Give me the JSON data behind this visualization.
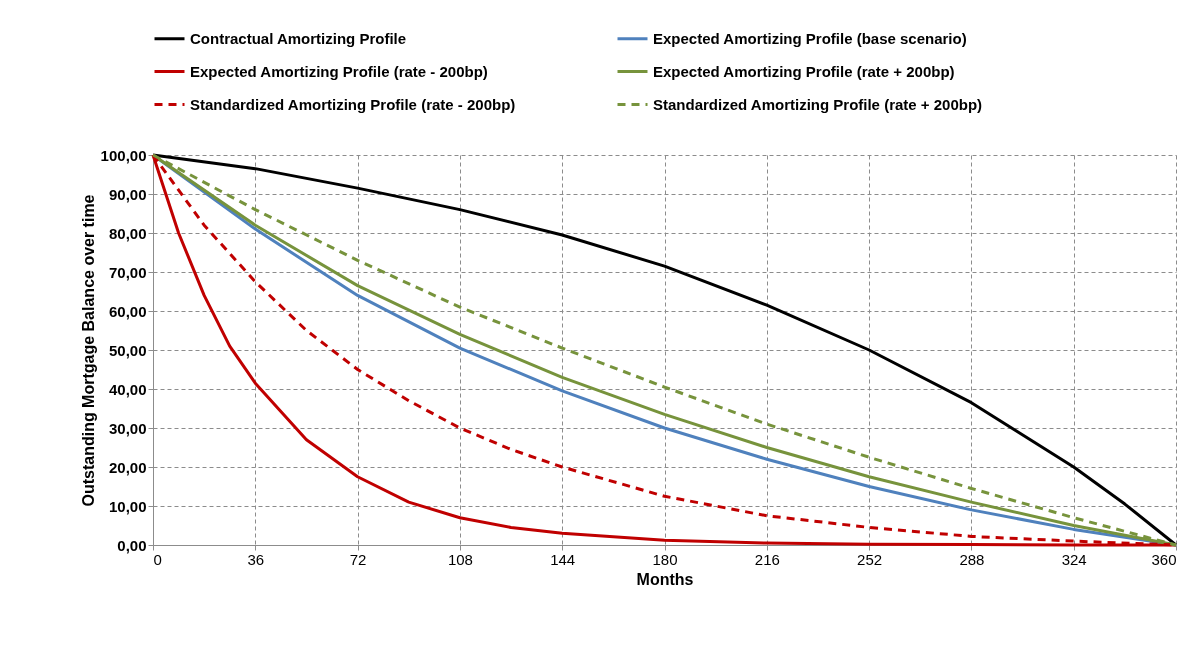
{
  "chart_data": {
    "type": "line",
    "xlabel": "Months",
    "ylabel": "Outstanding Mortgage Balance over time",
    "xlim": [
      0,
      360
    ],
    "xticks": [
      0,
      36,
      72,
      108,
      144,
      180,
      216,
      252,
      288,
      324,
      360
    ],
    "ylim": [
      0,
      100
    ],
    "yticks": [
      {
        "value": 0,
        "label": "0,00"
      },
      {
        "value": 10,
        "label": "10,00"
      },
      {
        "value": 20,
        "label": "20,00"
      },
      {
        "value": 30,
        "label": "30,00"
      },
      {
        "value": 40,
        "label": "40,00"
      },
      {
        "value": 50,
        "label": "50,00"
      },
      {
        "value": 60,
        "label": "60,00"
      },
      {
        "value": 70,
        "label": "70,00"
      },
      {
        "value": 80,
        "label": "80,00"
      },
      {
        "value": 90,
        "label": "90,00"
      },
      {
        "value": 100,
        "label": "100,00"
      }
    ],
    "grid": true,
    "legend": "top",
    "marker": "none",
    "series": [
      {
        "name": "Contractual Amortizing Profile",
        "color": "#000000",
        "line_style": "solid",
        "x": [
          0,
          36,
          72,
          108,
          144,
          180,
          216,
          252,
          288,
          324,
          342,
          360
        ],
        "values": [
          100,
          96.5,
          91.5,
          86,
          79.5,
          71.5,
          61.5,
          50,
          36.5,
          20,
          10.5,
          0
        ]
      },
      {
        "name": "Expected Amortizing Profile (base scenario)",
        "color": "#4f81bd",
        "line_style": "solid",
        "x": [
          0,
          36,
          72,
          108,
          144,
          180,
          216,
          252,
          288,
          324,
          360
        ],
        "values": [
          100,
          81,
          64,
          50.5,
          39.5,
          30,
          22,
          15,
          9,
          4,
          0
        ]
      },
      {
        "name": "Expected Amortizing Profile (rate  - 200bp)",
        "color": "#c00000",
        "line_style": "solid",
        "x": [
          0,
          9,
          18,
          27,
          36,
          54,
          72,
          90,
          108,
          126,
          144,
          180,
          216,
          252,
          288,
          324,
          360
        ],
        "values": [
          100,
          80,
          64,
          51,
          41.5,
          27,
          17.5,
          11,
          7,
          4.5,
          3,
          1.2,
          0.5,
          0.2,
          0.1,
          0,
          0
        ]
      },
      {
        "name": "Expected Amortizing Profile (rate  + 200bp)",
        "color": "#77933c",
        "line_style": "solid",
        "x": [
          0,
          36,
          72,
          108,
          144,
          180,
          216,
          252,
          288,
          324,
          360
        ],
        "values": [
          100,
          82,
          66.5,
          54,
          43,
          33.5,
          25,
          17.5,
          11,
          5,
          0
        ]
      },
      {
        "name": "Standardized Amortizing Profile (rate  - 200bp)",
        "color": "#c00000",
        "line_style": "dashed",
        "x": [
          0,
          18,
          36,
          54,
          72,
          90,
          108,
          126,
          144,
          180,
          216,
          252,
          288,
          324,
          360
        ],
        "values": [
          100,
          82,
          67.5,
          55,
          45,
          37,
          30,
          24.5,
          20,
          12.5,
          7.5,
          4.5,
          2.2,
          1,
          0
        ]
      },
      {
        "name": "Standardized Amortizing Profile (rate  + 200bp)",
        "color": "#77933c",
        "line_style": "dashed",
        "x": [
          0,
          36,
          72,
          108,
          144,
          180,
          216,
          252,
          288,
          324,
          360
        ],
        "values": [
          100,
          86,
          73,
          61,
          50.5,
          40.5,
          31,
          22.5,
          14.5,
          7,
          0
        ]
      }
    ]
  }
}
